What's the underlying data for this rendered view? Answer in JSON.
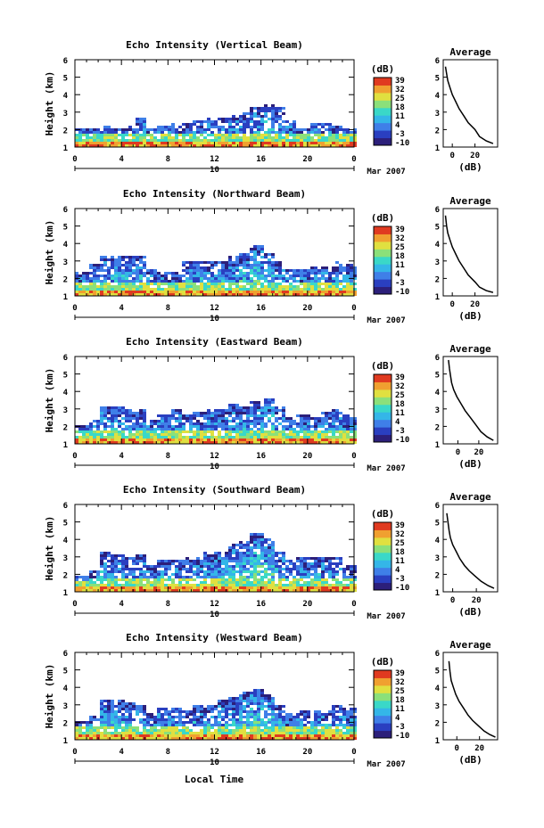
{
  "xlabel": "Local Time",
  "date_label": "Mar 2007",
  "date_day": "10",
  "colorbar": {
    "unit_label": "(dB)",
    "ticks": [
      "39",
      "32",
      "25",
      "18",
      "11",
      "4",
      "-3",
      "-10"
    ],
    "colors": [
      "#2c1f7a",
      "#2a3fc0",
      "#3f7fe8",
      "#34b6e8",
      "#3ad8c8",
      "#8be07a",
      "#e0e040",
      "#f0a030",
      "#e03a20"
    ]
  },
  "chart_data": [
    {
      "type": "heatmap",
      "title": "Echo Intensity (Vertical Beam)",
      "xlabel": "",
      "ylabel": "Height (km)",
      "xlim": [
        0,
        24
      ],
      "ylim": [
        1,
        6
      ],
      "xticks": [
        "0",
        "4",
        "8",
        "12",
        "16",
        "20",
        "0"
      ],
      "yticks": [
        "1",
        "2",
        "3",
        "4",
        "5",
        "6"
      ],
      "colorbar_range": [
        -10,
        39
      ],
      "echo_top_km": [
        2.2,
        2.2,
        2.3,
        2.2,
        2.3,
        2.8,
        2.2,
        2.3,
        2.4,
        2.5,
        2.6,
        2.7,
        2.8,
        2.9,
        3.0,
        3.3,
        3.5,
        3.4,
        2.6,
        2.2,
        2.4,
        2.4,
        2.3,
        2.2
      ]
    },
    {
      "type": "line",
      "title": "Average",
      "xlabel": "(dB)",
      "ylabel": "",
      "xlim": [
        -8,
        40
      ],
      "ylim": [
        1,
        6
      ],
      "xticks": [
        "0",
        "20"
      ],
      "yticks": [
        "1",
        "2",
        "3",
        "4",
        "5",
        "6"
      ],
      "x": [
        -6,
        -5,
        -4,
        -2,
        0,
        3,
        6,
        10,
        14,
        20,
        24,
        30,
        36
      ],
      "y": [
        5.6,
        5.2,
        4.8,
        4.4,
        4.0,
        3.6,
        3.2,
        2.8,
        2.4,
        2.0,
        1.6,
        1.35,
        1.2
      ]
    },
    {
      "type": "heatmap",
      "title": "Echo Intensity (Northward Beam)",
      "xlabel": "",
      "ylabel": "Height (km)",
      "xlim": [
        0,
        24
      ],
      "ylim": [
        1,
        6
      ],
      "xticks": [
        "0",
        "4",
        "8",
        "12",
        "16",
        "20",
        "0"
      ],
      "yticks": [
        "1",
        "2",
        "3",
        "4",
        "5",
        "6"
      ],
      "colorbar_range": [
        -10,
        39
      ],
      "echo_top_km": [
        2.4,
        2.9,
        3.3,
        3.3,
        3.4,
        3.3,
        2.6,
        2.4,
        2.5,
        3.0,
        3.1,
        3.0,
        3.1,
        3.3,
        3.6,
        4.0,
        3.6,
        3.0,
        2.6,
        2.6,
        2.7,
        2.7,
        3.0,
        2.9
      ]
    },
    {
      "type": "line",
      "title": "Average",
      "xlabel": "(dB)",
      "ylabel": "",
      "xlim": [
        -8,
        40
      ],
      "ylim": [
        1,
        6
      ],
      "xticks": [
        "0",
        "20"
      ],
      "yticks": [
        "1",
        "2",
        "3",
        "4",
        "5",
        "6"
      ],
      "x": [
        -6,
        -5,
        -4,
        -2,
        0,
        3,
        6,
        10,
        14,
        20,
        24,
        30,
        36
      ],
      "y": [
        5.6,
        5.0,
        4.6,
        4.2,
        3.8,
        3.4,
        3.0,
        2.6,
        2.2,
        1.8,
        1.5,
        1.3,
        1.2
      ]
    },
    {
      "type": "heatmap",
      "title": "Echo Intensity (Eastward Beam)",
      "xlabel": "",
      "ylabel": "Height (km)",
      "xlim": [
        0,
        24
      ],
      "ylim": [
        1,
        6
      ],
      "xticks": [
        "0",
        "4",
        "8",
        "12",
        "16",
        "20",
        "0"
      ],
      "yticks": [
        "1",
        "2",
        "3",
        "4",
        "5",
        "6"
      ],
      "colorbar_range": [
        -10,
        39
      ],
      "echo_top_km": [
        2.2,
        2.4,
        3.2,
        3.2,
        3.1,
        3.0,
        2.4,
        2.8,
        3.0,
        2.7,
        2.9,
        3.0,
        3.1,
        3.3,
        3.2,
        3.6,
        3.7,
        3.2,
        2.6,
        2.8,
        2.6,
        2.9,
        3.0,
        2.8
      ]
    },
    {
      "type": "line",
      "title": "Average",
      "xlabel": "(dB)",
      "ylabel": "",
      "xlim": [
        -14,
        38
      ],
      "ylim": [
        1,
        6
      ],
      "xticks": [
        "0",
        "20"
      ],
      "yticks": [
        "1",
        "2",
        "3",
        "4",
        "5",
        "6"
      ],
      "x": [
        -9,
        -8,
        -7,
        -6,
        -4,
        -1,
        3,
        7,
        12,
        17,
        22,
        28,
        34
      ],
      "y": [
        5.8,
        5.3,
        4.9,
        4.5,
        4.1,
        3.7,
        3.3,
        2.9,
        2.5,
        2.1,
        1.7,
        1.4,
        1.2
      ]
    },
    {
      "type": "heatmap",
      "title": "Echo Intensity (Southward Beam)",
      "xlabel": "",
      "ylabel": "Height (km)",
      "xlim": [
        0,
        24
      ],
      "ylim": [
        1,
        6
      ],
      "xticks": [
        "0",
        "4",
        "8",
        "12",
        "16",
        "20",
        "0"
      ],
      "yticks": [
        "1",
        "2",
        "3",
        "4",
        "5",
        "6"
      ],
      "colorbar_range": [
        -10,
        39
      ],
      "echo_top_km": [
        2.0,
        2.3,
        3.3,
        3.2,
        3.1,
        3.2,
        2.6,
        2.9,
        2.9,
        3.0,
        3.1,
        3.3,
        3.4,
        3.8,
        4.0,
        4.4,
        4.2,
        3.3,
        2.9,
        3.0,
        3.1,
        3.0,
        3.0,
        2.6
      ]
    },
    {
      "type": "line",
      "title": "Average",
      "xlabel": "(dB)",
      "ylabel": "",
      "xlim": [
        -8,
        38
      ],
      "ylim": [
        1,
        6
      ],
      "xticks": [
        "0",
        "20"
      ],
      "yticks": [
        "1",
        "2",
        "3",
        "4",
        "5",
        "6"
      ],
      "x": [
        -5,
        -4,
        -3,
        -2,
        0,
        3,
        6,
        10,
        14,
        19,
        24,
        30,
        35
      ],
      "y": [
        5.5,
        5.0,
        4.5,
        4.1,
        3.7,
        3.3,
        2.9,
        2.5,
        2.2,
        1.9,
        1.6,
        1.35,
        1.2
      ]
    },
    {
      "type": "heatmap",
      "title": "Echo Intensity (Westward Beam)",
      "xlabel": "",
      "ylabel": "Height (km)",
      "xlim": [
        0,
        24
      ],
      "ylim": [
        1,
        6
      ],
      "xticks": [
        "0",
        "4",
        "8",
        "12",
        "16",
        "20",
        "0"
      ],
      "yticks": [
        "1",
        "2",
        "3",
        "4",
        "5",
        "6"
      ],
      "colorbar_range": [
        -10,
        39
      ],
      "echo_top_km": [
        2.1,
        2.5,
        3.4,
        3.3,
        3.2,
        3.0,
        2.6,
        2.9,
        2.9,
        2.8,
        3.0,
        3.1,
        3.3,
        3.6,
        3.8,
        4.0,
        3.7,
        3.1,
        2.6,
        2.7,
        2.7,
        2.8,
        3.0,
        2.9
      ]
    },
    {
      "type": "line",
      "title": "Average",
      "xlabel": "(dB)",
      "ylabel": "",
      "xlim": [
        -12,
        36
      ],
      "ylim": [
        1,
        6
      ],
      "xticks": [
        "0",
        "20"
      ],
      "yticks": [
        "1",
        "2",
        "3",
        "4",
        "5",
        "6"
      ],
      "x": [
        -7,
        -6,
        -5,
        -3,
        -1,
        2,
        6,
        10,
        14,
        19,
        24,
        29,
        34
      ],
      "y": [
        5.5,
        4.9,
        4.4,
        4.0,
        3.6,
        3.2,
        2.8,
        2.4,
        2.1,
        1.8,
        1.5,
        1.3,
        1.15
      ]
    }
  ]
}
